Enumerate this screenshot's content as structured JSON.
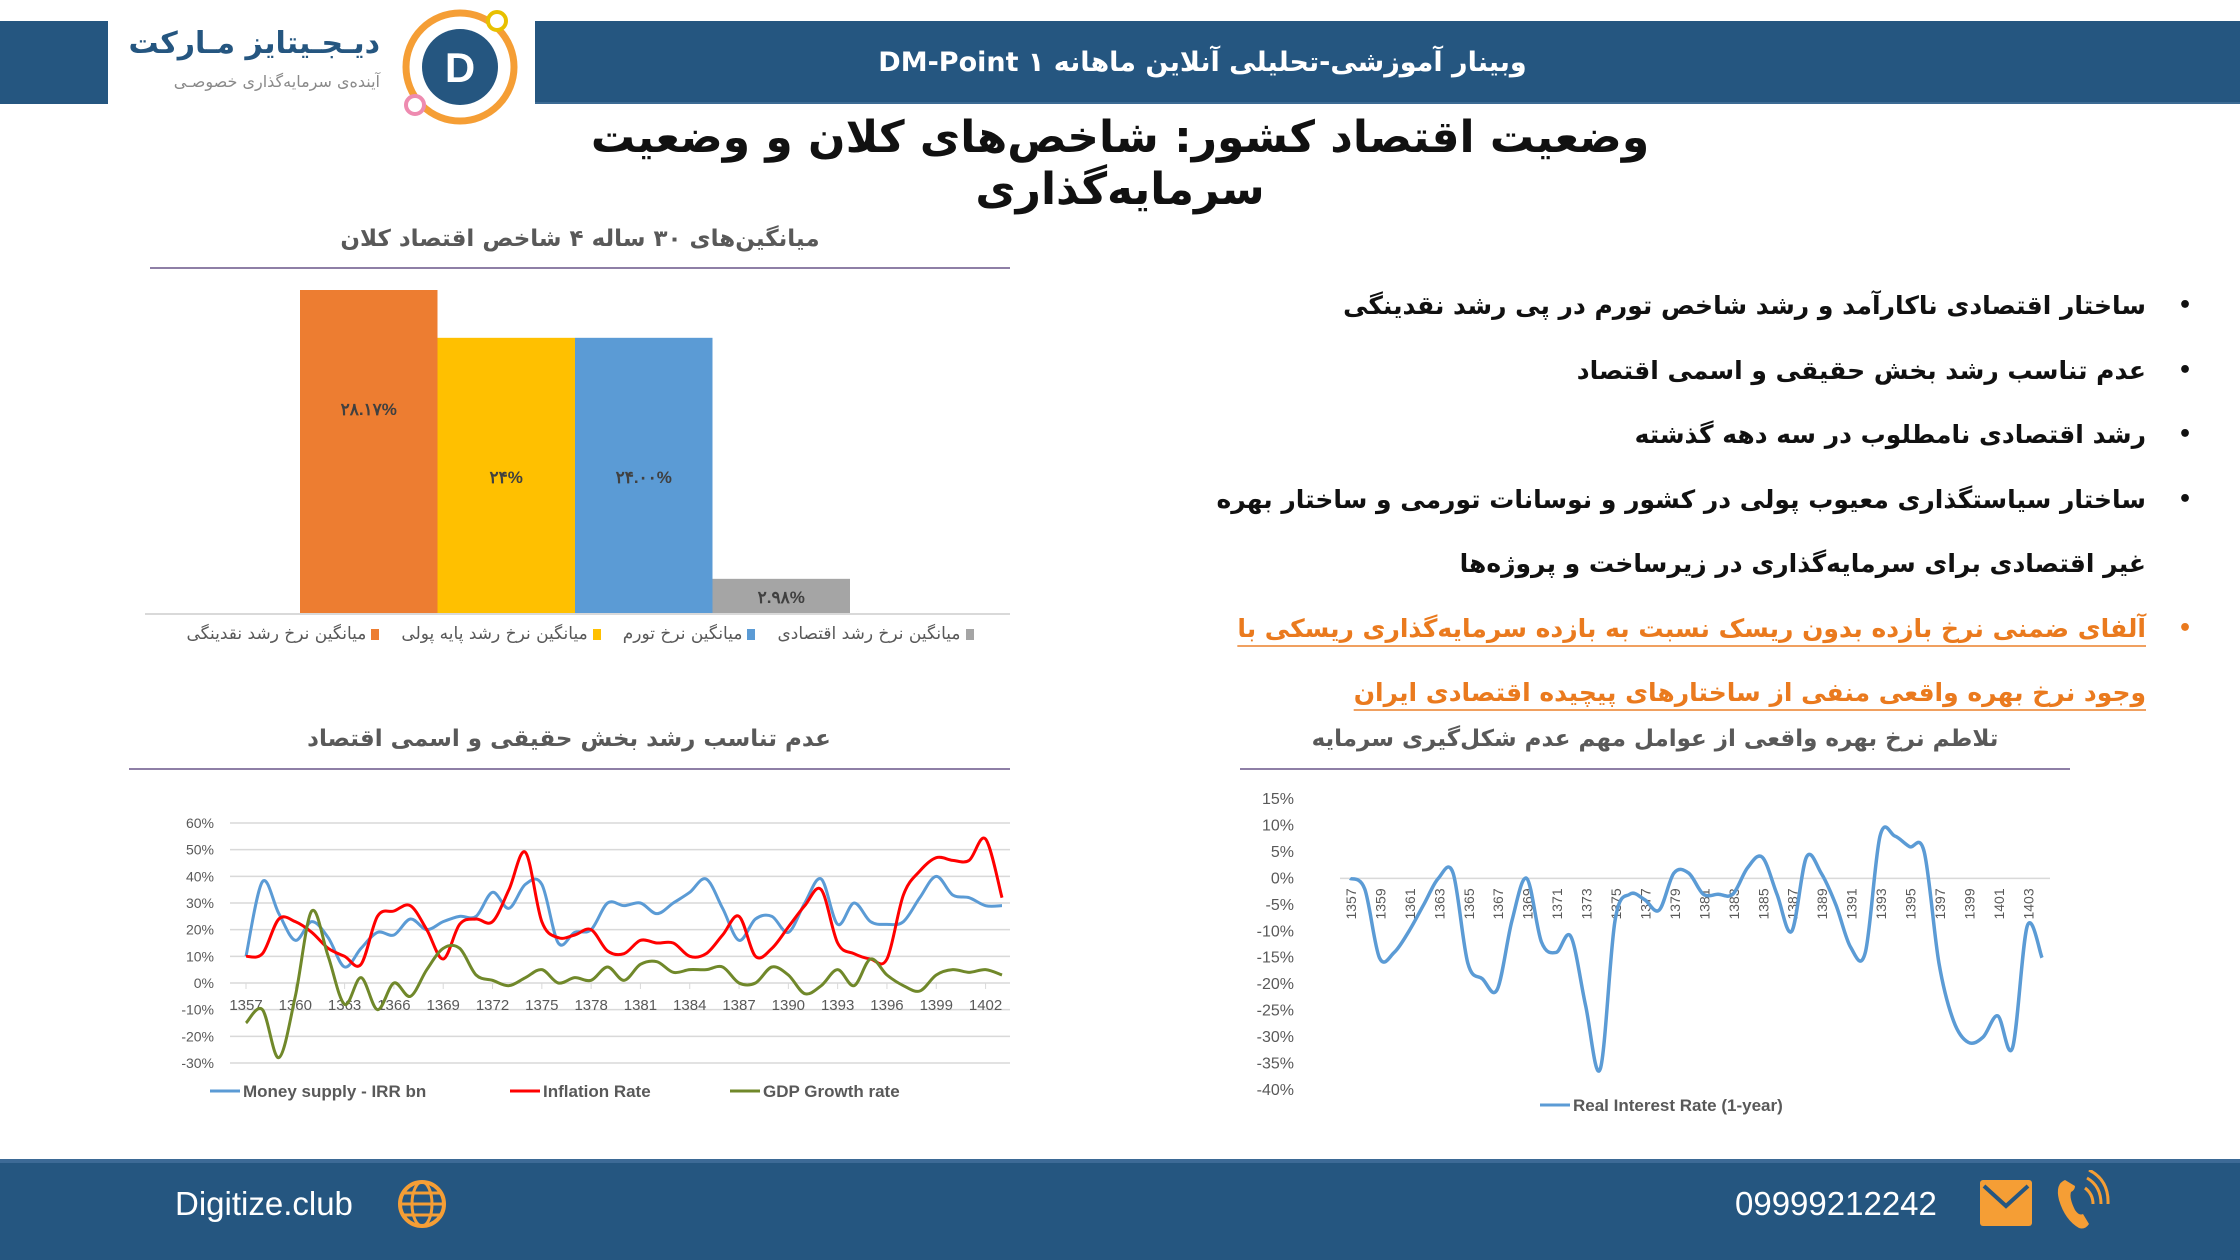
{
  "header": {
    "title": "وبینار آموزشی-تحلیلی آنلاین ماهانه DM-Point ۱",
    "logo_name": "دیـجـیتایز مـارکت",
    "logo_tagline": "آینده‌ی سرمایه‌گذاری خصوصـی",
    "logo_letter": "D"
  },
  "slide": {
    "title_line1": "وضعیت اقتصاد کشور: شاخص‌های کلان و وضعیت",
    "title_line2": "سرمایه‌گذاری"
  },
  "bullets": [
    {
      "text": "ساختار اقتصادی ناکارآمد و رشد شاخص تورم در پی رشد نقدینگی",
      "bullet": true,
      "highlight": false
    },
    {
      "text": "عدم تناسب رشد بخش حقیقی و اسمی اقتصاد",
      "bullet": true,
      "highlight": false
    },
    {
      "text": "رشد اقتصادی نامطلوب در سه دهه گذشته",
      "bullet": true,
      "highlight": false
    },
    {
      "text": "ساختار سیاستگذاری معیوب پولی در کشور و نوسانات تورمی و ساختار بهره",
      "bullet": true,
      "highlight": false
    },
    {
      "text": "غیر اقتصادی برای سرمایه‌گذاری در زیرساخت و پروژه‌ها",
      "bullet": false,
      "highlight": false
    },
    {
      "text": "آلفای ضمنی نرخ بازده بدون ریسک نسبت به بازده سرمایه‌گذاری ریسکی با",
      "bullet": true,
      "highlight": true
    },
    {
      "text": "وجود نرخ بهره واقعی منفی از ساختارهای پیچیده اقتصادی ایران",
      "bullet": false,
      "highlight": true
    }
  ],
  "bullet_symbol": "•",
  "colors": {
    "brand": "#255680",
    "accent": "#f59e35",
    "orange_text": "#ea7a1e"
  },
  "footer": {
    "website": "Digitize.club",
    "phone": "09999212242",
    "icons": [
      "globe-icon",
      "mail-icon",
      "phone-icon"
    ]
  },
  "chart_data": [
    {
      "type": "bar",
      "title": "میانگین‌های ۳۰ ساله ۴ شاخص اقتصاد کلان",
      "categories": [
        "میانگین نرخ رشد نقدینگی",
        "میانگین نرخ رشد پایه پولی",
        "میانگین نرخ تورم",
        "میانگین نرخ رشد اقتصادی"
      ],
      "values": [
        28.17,
        24,
        24.0,
        2.98
      ],
      "labels": [
        "۲۸.۱۷%",
        "۲۴%",
        "۲۴.۰۰%",
        "۲.۹۸%"
      ],
      "colors": [
        "#ed7d31",
        "#ffc000",
        "#5b9bd5",
        "#a5a5a5"
      ],
      "ylim": [
        0,
        28.17
      ],
      "legend": "bottom"
    },
    {
      "type": "line",
      "title": "عدم تناسب رشد بخش حقیقی و اسمی اقتصاد",
      "x": [
        1357,
        1358,
        1359,
        1360,
        1361,
        1362,
        1363,
        1364,
        1365,
        1366,
        1367,
        1368,
        1369,
        1370,
        1371,
        1372,
        1373,
        1374,
        1375,
        1376,
        1377,
        1378,
        1379,
        1380,
        1381,
        1382,
        1383,
        1384,
        1385,
        1386,
        1387,
        1388,
        1389,
        1390,
        1391,
        1392,
        1393,
        1394,
        1395,
        1396,
        1397,
        1398,
        1399,
        1400,
        1401,
        1402,
        1403
      ],
      "xticks": [
        "1357",
        "1360",
        "1363",
        "1366",
        "1369",
        "1372",
        "1375",
        "1378",
        "1381",
        "1384",
        "1387",
        "1390",
        "1393",
        "1396",
        "1399",
        "1402"
      ],
      "yticks": [
        "60%",
        "50%",
        "40%",
        "30%",
        "20%",
        "10%",
        "0%",
        "-10%",
        "-20%",
        "-30%"
      ],
      "ylim": [
        -30,
        60
      ],
      "grid": true,
      "legend": "bottom",
      "series": [
        {
          "name": "Money supply - IRR bn",
          "color": "#5b9bd5",
          "values": [
            10,
            38,
            26,
            16,
            23,
            17,
            6,
            13,
            19,
            18,
            24,
            20,
            23,
            25,
            25,
            34,
            28,
            37,
            37,
            15,
            19,
            20,
            30,
            29,
            30,
            26,
            30,
            34,
            39,
            28,
            16,
            24,
            25,
            19,
            30,
            39,
            22,
            30,
            23,
            22,
            23,
            32,
            40,
            33,
            32,
            29,
            29
          ]
        },
        {
          "name": "Inflation Rate",
          "color": "#ff0000",
          "values": [
            10,
            11,
            24,
            23,
            19,
            13,
            10,
            7,
            25,
            27,
            29,
            20,
            9,
            22,
            24,
            23,
            35,
            49,
            23,
            17,
            18,
            20,
            12,
            11,
            16,
            15,
            15,
            10,
            11,
            18,
            25,
            10,
            13,
            21,
            29,
            35,
            15,
            11,
            9,
            9,
            33,
            42,
            47,
            46,
            46,
            54,
            32
          ]
        },
        {
          "name": "GDP  Growth rate",
          "color": "#70882a",
          "values": [
            -15,
            -10,
            -28,
            -5,
            27,
            10,
            -8,
            2,
            -10,
            0,
            -5,
            5,
            13,
            13,
            3,
            1,
            -1,
            2,
            5,
            0,
            2,
            1,
            6,
            1,
            7,
            8,
            4,
            5,
            5,
            6,
            0,
            0,
            6,
            3,
            -4,
            -1,
            5,
            -1,
            9,
            3,
            -1,
            -3,
            3,
            5,
            4,
            5,
            3
          ]
        }
      ]
    },
    {
      "type": "line",
      "title": "تلاطم نرخ بهره واقعی از عوامل مهم عدم شکل‌گیری سرمایه",
      "x": [
        1357,
        1358,
        1359,
        1360,
        1361,
        1362,
        1363,
        1364,
        1365,
        1366,
        1367,
        1368,
        1369,
        1370,
        1371,
        1372,
        1373,
        1374,
        1375,
        1376,
        1377,
        1378,
        1379,
        1380,
        1381,
        1382,
        1383,
        1384,
        1385,
        1386,
        1387,
        1388,
        1389,
        1390,
        1391,
        1392,
        1393,
        1394,
        1395,
        1396,
        1397,
        1398,
        1399,
        1400,
        1401,
        1402,
        1403,
        1404
      ],
      "xticks": [
        "1357",
        "1359",
        "1361",
        "1363",
        "1365",
        "1367",
        "1369",
        "1371",
        "1373",
        "1375",
        "1377",
        "1379",
        "1381",
        "1383",
        "1385",
        "1387",
        "1389",
        "1391",
        "1393",
        "1395",
        "1397",
        "1399",
        "1401",
        "1403"
      ],
      "yticks": [
        "15%",
        "10%",
        "5%",
        "0%",
        "-5%",
        "-10%",
        "-15%",
        "-20%",
        "-25%",
        "-30%",
        "-35%",
        "-40%"
      ],
      "ylim": [
        -40,
        15
      ],
      "legend": "bottom",
      "series": [
        {
          "name": "Real Interest Rate (1-year)",
          "color": "#5b9bd5",
          "values": [
            0,
            -2,
            -15,
            -14,
            -10,
            -5,
            0,
            1,
            -16,
            -19,
            -21,
            -8,
            0,
            -12,
            -14,
            -11,
            -24,
            -36,
            -8,
            -3,
            -4,
            -6,
            1,
            1,
            -3,
            -3,
            -3,
            2,
            4,
            -3,
            -10,
            4,
            1,
            -5,
            -13,
            -14,
            8,
            8,
            6,
            5,
            -16,
            -27,
            -31,
            -30,
            -26,
            -32,
            -9,
            -15
          ]
        }
      ]
    }
  ]
}
